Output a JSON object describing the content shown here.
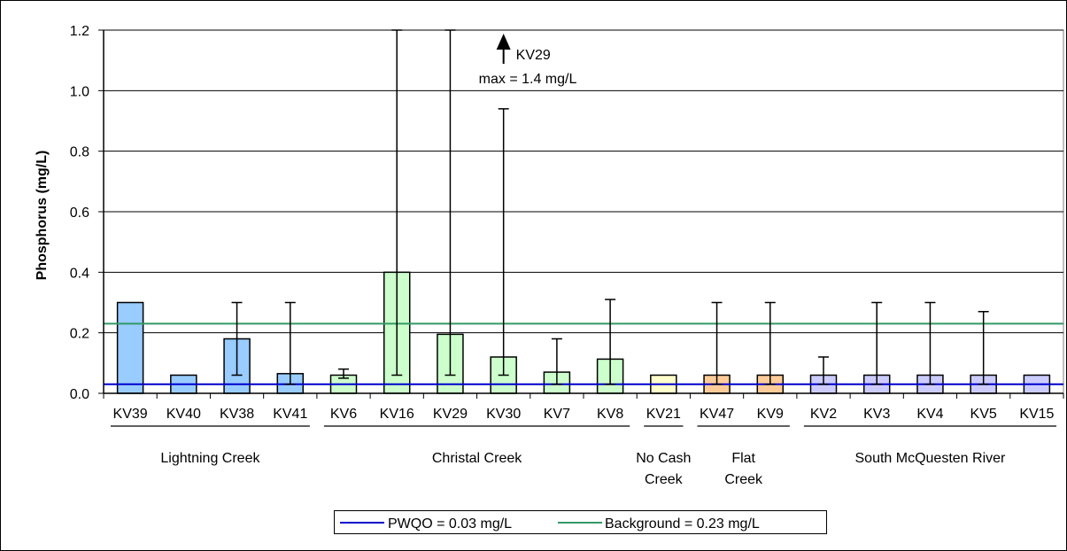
{
  "chart_data": {
    "type": "bar",
    "ylabel": "Phosphorus (mg/L)",
    "ylim": [
      0,
      1.2
    ],
    "yticks": [
      "0.0",
      "0.2",
      "0.4",
      "0.6",
      "0.8",
      "1.0",
      "1.2"
    ],
    "grid": true,
    "categories": [
      "KV39",
      "KV40",
      "KV38",
      "KV41",
      "KV6",
      "KV16",
      "KV29",
      "KV30",
      "KV7",
      "KV8",
      "KV21",
      "KV47",
      "KV9",
      "KV2",
      "KV3",
      "KV4",
      "KV5",
      "KV15"
    ],
    "values": [
      0.3,
      0.06,
      0.18,
      0.065,
      0.06,
      0.4,
      0.195,
      0.12,
      0.07,
      0.113,
      0.06,
      0.06,
      0.06,
      0.06,
      0.06,
      0.06,
      0.06,
      0.06
    ],
    "error_min": [
      null,
      null,
      0.06,
      0.03,
      0.05,
      0.06,
      0.06,
      0.06,
      0.03,
      0.03,
      null,
      0.03,
      0.03,
      0.03,
      0.03,
      0.03,
      0.03,
      null
    ],
    "error_max": [
      null,
      null,
      0.3,
      0.3,
      0.08,
      1.2,
      1.2,
      0.94,
      0.18,
      0.31,
      null,
      0.3,
      0.3,
      0.12,
      0.3,
      0.3,
      0.27,
      null
    ],
    "bar_colors": [
      "#99ccff",
      "#99ccff",
      "#99ccff",
      "#99ccff",
      "#ccffcc",
      "#ccffcc",
      "#ccffcc",
      "#ccffcc",
      "#ccffcc",
      "#ccffcc",
      "#ffffcc",
      "#ffcc99",
      "#ffcc99",
      "#ccccff",
      "#ccccff",
      "#ccccff",
      "#ccccff",
      "#ccccff"
    ],
    "groups": [
      {
        "label": [
          "Lightning Creek"
        ],
        "from": 0,
        "to": 3
      },
      {
        "label": [
          "Christal Creek"
        ],
        "from": 4,
        "to": 9
      },
      {
        "label": [
          "No Cash",
          "Creek"
        ],
        "from": 10,
        "to": 10
      },
      {
        "label": [
          "Flat",
          "Creek"
        ],
        "from": 11,
        "to": 12
      },
      {
        "label": [
          "South McQuesten River"
        ],
        "from": 13,
        "to": 17
      }
    ],
    "reference_lines": [
      {
        "name": "PWQO = 0.03 mg/L",
        "value": 0.03,
        "color": "#0000cc"
      },
      {
        "name": "Background = 0.23 mg/L",
        "value": 0.23,
        "color": "#339966"
      }
    ],
    "annotation": {
      "label": "KV29",
      "text": "max = 1.4 mg/L",
      "category": "KV30"
    },
    "legend_position": "bottom-center"
  }
}
